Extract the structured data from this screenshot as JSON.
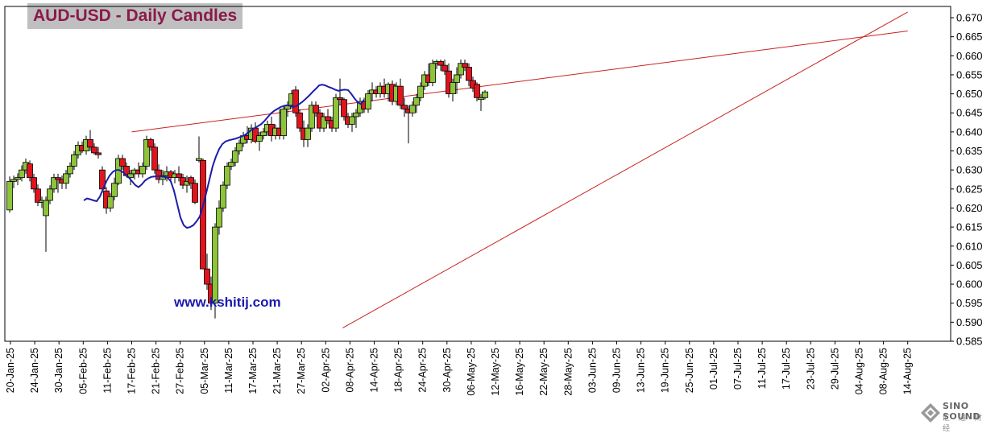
{
  "chart_data": {
    "type": "candlestick",
    "title": "AUD-USD - Daily Candles",
    "website": "www.kshitij.com",
    "watermark": {
      "text": "SINO SOUND",
      "subtext": "汇 通 财 经"
    },
    "ylim": [
      0.585,
      0.67
    ],
    "yticks": [
      "0.670",
      "0.665",
      "0.660",
      "0.655",
      "0.650",
      "0.645",
      "0.640",
      "0.635",
      "0.630",
      "0.625",
      "0.620",
      "0.615",
      "0.610",
      "0.605",
      "0.600",
      "0.595",
      "0.590",
      "0.585"
    ],
    "xticks": [
      "20-Jan-25",
      "24-Jan-25",
      "30-Jan-25",
      "05-Feb-25",
      "11-Feb-25",
      "17-Feb-25",
      "21-Feb-25",
      "27-Feb-25",
      "05-Mar-25",
      "11-Mar-25",
      "17-Mar-25",
      "21-Mar-25",
      "27-Mar-25",
      "02-Apr-25",
      "08-Apr-25",
      "14-Apr-25",
      "18-Apr-25",
      "24-Apr-25",
      "30-Apr-25",
      "06-May-25",
      "12-May-25",
      "16-May-25",
      "22-May-25",
      "28-May-25",
      "03-Jun-25",
      "09-Jun-25",
      "13-Jun-25",
      "19-Jun-25",
      "25-Jun-25",
      "01-Jul-25",
      "07-Jul-25",
      "11-Jul-25",
      "17-Jul-25",
      "23-Jul-25",
      "29-Jul-25",
      "04-Aug-25",
      "08-Aug-25",
      "14-Aug-25"
    ],
    "candles": [
      [
        0.6195,
        0.6283,
        0.6188,
        0.627
      ],
      [
        0.627,
        0.6285,
        0.6252,
        0.6275
      ],
      [
        0.6275,
        0.6291,
        0.626,
        0.628
      ],
      [
        0.628,
        0.6312,
        0.627,
        0.63
      ],
      [
        0.63,
        0.633,
        0.629,
        0.632
      ],
      [
        0.6316,
        0.6325,
        0.627,
        0.628
      ],
      [
        0.628,
        0.629,
        0.624,
        0.625
      ],
      [
        0.625,
        0.6262,
        0.6205,
        0.6215
      ],
      [
        0.6215,
        0.623,
        0.62,
        0.622
      ],
      [
        0.618,
        0.623,
        0.6085,
        0.622
      ],
      [
        0.622,
        0.626,
        0.621,
        0.625
      ],
      [
        0.625,
        0.629,
        0.624,
        0.628
      ],
      [
        0.628,
        0.629,
        0.624,
        0.6275
      ],
      [
        0.6275,
        0.6285,
        0.625,
        0.6265
      ],
      [
        0.6265,
        0.63,
        0.625,
        0.629
      ],
      [
        0.629,
        0.632,
        0.628,
        0.631
      ],
      [
        0.631,
        0.635,
        0.63,
        0.634
      ],
      [
        0.634,
        0.6375,
        0.633,
        0.6365
      ],
      [
        0.6365,
        0.6375,
        0.6345,
        0.635
      ],
      [
        0.635,
        0.639,
        0.634,
        0.638
      ],
      [
        0.638,
        0.6405,
        0.635,
        0.636
      ],
      [
        0.636,
        0.637,
        0.634,
        0.6345
      ],
      [
        0.6345,
        0.636,
        0.633,
        0.634
      ],
      [
        0.63,
        0.631,
        0.624,
        0.625
      ],
      [
        0.6245,
        0.6255,
        0.6185,
        0.62
      ],
      [
        0.62,
        0.624,
        0.619,
        0.623
      ],
      [
        0.623,
        0.628,
        0.622,
        0.6265
      ],
      [
        0.6265,
        0.634,
        0.626,
        0.633
      ],
      [
        0.633,
        0.634,
        0.63,
        0.631
      ],
      [
        0.631,
        0.632,
        0.628,
        0.6285
      ],
      [
        0.628,
        0.63,
        0.626,
        0.629
      ],
      [
        0.629,
        0.6305,
        0.6275,
        0.63
      ],
      [
        0.63,
        0.632,
        0.628,
        0.629
      ],
      [
        0.629,
        0.632,
        0.628,
        0.631
      ],
      [
        0.631,
        0.639,
        0.63,
        0.638
      ],
      [
        0.638,
        0.6385,
        0.635,
        0.636
      ],
      [
        0.636,
        0.637,
        0.629,
        0.63
      ],
      [
        0.63,
        0.6315,
        0.6265,
        0.6275
      ],
      [
        0.6275,
        0.63,
        0.626,
        0.6285
      ],
      [
        0.6285,
        0.631,
        0.627,
        0.6295
      ],
      [
        0.6295,
        0.63,
        0.627,
        0.628
      ],
      [
        0.628,
        0.63,
        0.6265,
        0.629
      ],
      [
        0.629,
        0.631,
        0.627,
        0.628
      ],
      [
        0.628,
        0.629,
        0.625,
        0.626
      ],
      [
        0.626,
        0.6285,
        0.624,
        0.627
      ],
      [
        0.628,
        0.6285,
        0.625,
        0.6265
      ],
      [
        0.6265,
        0.6275,
        0.621,
        0.6215
      ],
      [
        0.6325,
        0.6388,
        0.632,
        0.633
      ],
      [
        0.6325,
        0.633,
        0.604,
        0.604
      ],
      [
        0.604,
        0.608,
        0.5985,
        0.6
      ],
      [
        0.6,
        0.602,
        0.5932,
        0.595
      ],
      [
        0.595,
        0.616,
        0.591,
        0.615
      ],
      [
        0.615,
        0.622,
        0.613,
        0.62
      ],
      [
        0.62,
        0.627,
        0.619,
        0.626
      ],
      [
        0.626,
        0.632,
        0.625,
        0.631
      ],
      [
        0.631,
        0.633,
        0.63,
        0.632
      ],
      [
        0.632,
        0.636,
        0.631,
        0.635
      ],
      [
        0.635,
        0.638,
        0.634,
        0.637
      ],
      [
        0.637,
        0.64,
        0.636,
        0.639
      ],
      [
        0.639,
        0.6415,
        0.637,
        0.638
      ],
      [
        0.638,
        0.642,
        0.637,
        0.641
      ],
      [
        0.641,
        0.6425,
        0.637,
        0.6375
      ],
      [
        0.6375,
        0.64,
        0.635,
        0.639
      ],
      [
        0.639,
        0.641,
        0.638,
        0.64
      ],
      [
        0.64,
        0.643,
        0.639,
        0.642
      ],
      [
        0.642,
        0.644,
        0.6375,
        0.639
      ],
      [
        0.639,
        0.642,
        0.638,
        0.641
      ],
      [
        0.641,
        0.646,
        0.638,
        0.639
      ],
      [
        0.639,
        0.647,
        0.638,
        0.646
      ],
      [
        0.646,
        0.648,
        0.644,
        0.647
      ],
      [
        0.647,
        0.651,
        0.646,
        0.65
      ],
      [
        0.651,
        0.652,
        0.644,
        0.645
      ],
      [
        0.645,
        0.646,
        0.64,
        0.641
      ],
      [
        0.641,
        0.643,
        0.636,
        0.638
      ],
      [
        0.638,
        0.642,
        0.636,
        0.641
      ],
      [
        0.641,
        0.648,
        0.64,
        0.647
      ],
      [
        0.647,
        0.648,
        0.644,
        0.645
      ],
      [
        0.645,
        0.646,
        0.64,
        0.641
      ],
      [
        0.641,
        0.645,
        0.64,
        0.644
      ],
      [
        0.644,
        0.646,
        0.642,
        0.643
      ],
      [
        0.643,
        0.644,
        0.64,
        0.641
      ],
      [
        0.641,
        0.65,
        0.64,
        0.649
      ],
      [
        0.649,
        0.654,
        0.647,
        0.6485
      ],
      [
        0.6485,
        0.649,
        0.643,
        0.644
      ],
      [
        0.644,
        0.645,
        0.641,
        0.642
      ],
      [
        0.642,
        0.645,
        0.64,
        0.644
      ],
      [
        0.644,
        0.646,
        0.641,
        0.645
      ],
      [
        0.645,
        0.649,
        0.644,
        0.648
      ],
      [
        0.648,
        0.649,
        0.645,
        0.646
      ],
      [
        0.646,
        0.651,
        0.645,
        0.65
      ],
      [
        0.65,
        0.653,
        0.648,
        0.651
      ],
      [
        0.651,
        0.652,
        0.649,
        0.65
      ],
      [
        0.65,
        0.653,
        0.649,
        0.652
      ],
      [
        0.652,
        0.654,
        0.649,
        0.65
      ],
      [
        0.65,
        0.653,
        0.648,
        0.6525
      ],
      [
        0.6525,
        0.6535,
        0.647,
        0.648
      ],
      [
        0.648,
        0.653,
        0.647,
        0.652
      ],
      [
        0.652,
        0.654,
        0.646,
        0.647
      ],
      [
        0.647,
        0.649,
        0.644,
        0.646
      ],
      [
        0.646,
        0.647,
        0.637,
        0.645
      ],
      [
        0.645,
        0.648,
        0.644,
        0.647
      ],
      [
        0.647,
        0.65,
        0.645,
        0.649
      ],
      [
        0.649,
        0.653,
        0.648,
        0.652
      ],
      [
        0.652,
        0.656,
        0.651,
        0.655
      ],
      [
        0.655,
        0.658,
        0.652,
        0.653
      ],
      [
        0.653,
        0.659,
        0.652,
        0.658
      ],
      [
        0.658,
        0.659,
        0.6565,
        0.6585
      ],
      [
        0.6585,
        0.659,
        0.656,
        0.6575
      ],
      [
        0.6575,
        0.659,
        0.655,
        0.656
      ],
      [
        0.656,
        0.658,
        0.649,
        0.65
      ],
      [
        0.65,
        0.654,
        0.648,
        0.653
      ],
      [
        0.653,
        0.657,
        0.65,
        0.655
      ],
      [
        0.655,
        0.659,
        0.654,
        0.658
      ],
      [
        0.658,
        0.659,
        0.656,
        0.657
      ],
      [
        0.657,
        0.658,
        0.652,
        0.6535
      ],
      [
        0.6535,
        0.6545,
        0.6505,
        0.6515
      ],
      [
        0.6525,
        0.653,
        0.648,
        0.649
      ],
      [
        0.6485,
        0.65,
        0.6455,
        0.649
      ],
      [
        0.649,
        0.651,
        0.6485,
        0.6505
      ]
    ],
    "ma_series": {
      "name": "",
      "points": [
        [
          12,
          0.622
        ],
        [
          16,
          0.6225
        ],
        [
          20,
          0.6223
        ],
        [
          24,
          0.622
        ],
        [
          28,
          0.6218
        ],
        [
          32,
          0.623
        ],
        [
          36,
          0.625
        ],
        [
          40,
          0.627
        ],
        [
          44,
          0.6285
        ],
        [
          48,
          0.6295
        ],
        [
          52,
          0.63
        ],
        [
          56,
          0.63
        ],
        [
          60,
          0.6295
        ],
        [
          64,
          0.6288
        ],
        [
          68,
          0.628
        ],
        [
          72,
          0.627
        ],
        [
          76,
          0.626
        ],
        [
          80,
          0.6255
        ],
        [
          84,
          0.6262
        ],
        [
          88,
          0.6272
        ],
        [
          92,
          0.6278
        ],
        [
          96,
          0.6282
        ],
        [
          100,
          0.6283
        ],
        [
          104,
          0.6284
        ],
        [
          108,
          0.6283
        ],
        [
          112,
          0.6282
        ],
        [
          116,
          0.628
        ],
        [
          120,
          0.627
        ],
        [
          124,
          0.6245
        ],
        [
          128,
          0.621
        ],
        [
          132,
          0.6175
        ],
        [
          136,
          0.6155
        ],
        [
          140,
          0.6148
        ],
        [
          144,
          0.615
        ],
        [
          148,
          0.6155
        ],
        [
          152,
          0.6165
        ],
        [
          156,
          0.6178
        ],
        [
          160,
          0.6205
        ],
        [
          164,
          0.624
        ],
        [
          168,
          0.6275
        ],
        [
          172,
          0.631
        ],
        [
          176,
          0.6335
        ],
        [
          180,
          0.6355
        ],
        [
          184,
          0.6368
        ],
        [
          188,
          0.6375
        ],
        [
          192,
          0.6378
        ],
        [
          196,
          0.638
        ],
        [
          200,
          0.6382
        ],
        [
          204,
          0.6385
        ],
        [
          208,
          0.6388
        ],
        [
          212,
          0.6392
        ],
        [
          216,
          0.6398
        ],
        [
          220,
          0.6405
        ],
        [
          224,
          0.641
        ],
        [
          228,
          0.6415
        ],
        [
          232,
          0.642
        ],
        [
          236,
          0.6428
        ],
        [
          240,
          0.6438
        ],
        [
          244,
          0.6448
        ],
        [
          248,
          0.6455
        ],
        [
          252,
          0.646
        ],
        [
          256,
          0.6465
        ],
        [
          260,
          0.6468
        ],
        [
          264,
          0.647
        ],
        [
          268,
          0.6468
        ],
        [
          272,
          0.6466
        ],
        [
          276,
          0.6468
        ],
        [
          280,
          0.6474
        ],
        [
          284,
          0.648
        ],
        [
          288,
          0.6488
        ],
        [
          292,
          0.6496
        ],
        [
          296,
          0.6505
        ],
        [
          300,
          0.6513
        ],
        [
          304,
          0.6522
        ],
        [
          308,
          0.6524
        ],
        [
          312,
          0.6522
        ],
        [
          316,
          0.6518
        ],
        [
          320,
          0.6515
        ],
        [
          324,
          0.6511
        ],
        [
          328,
          0.6508
        ],
        [
          332,
          0.651
        ],
        [
          336,
          0.6511
        ],
        [
          340,
          0.651
        ],
        [
          344,
          0.65
        ],
        [
          348,
          0.6488
        ],
        [
          352,
          0.6478
        ],
        [
          356,
          0.6473
        ],
        [
          360,
          0.6485
        ]
      ]
    },
    "trendlines": [
      {
        "start": [
          "17-Feb-25",
          0.64
        ],
        "end": [
          "14-Aug-25",
          0.6665
        ]
      },
      {
        "start": [
          "06-Apr-25",
          0.5885
        ],
        "end": [
          "14-Aug-25",
          0.6715
        ]
      }
    ],
    "colors": {
      "bull": "#8dc43c",
      "bear": "#e0141e",
      "ma": "#1c1cab",
      "trend": "#c8231e",
      "title_bg": "#bfbfbf",
      "title_text": "#8b1a4a"
    }
  }
}
